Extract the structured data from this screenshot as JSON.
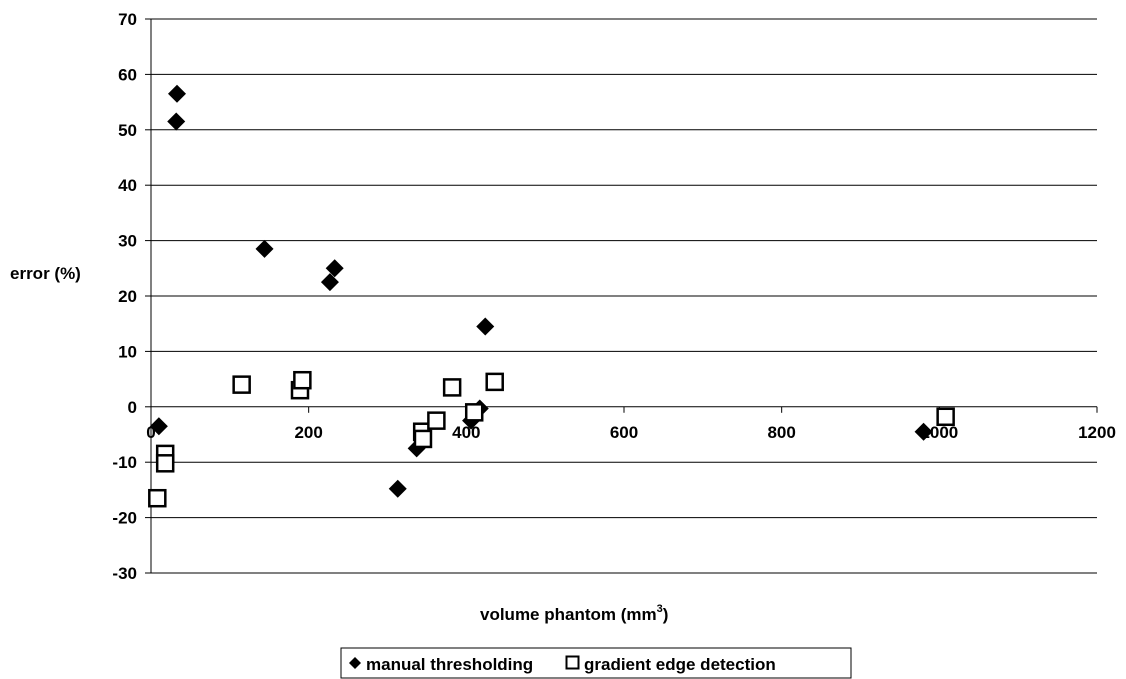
{
  "chart_data": {
    "type": "scatter",
    "title": "",
    "xlabel": "volume phantom (mm",
    "xlabel_superscript": "3",
    "xlabel_suffix": ")",
    "ylabel": "error (%)",
    "xlim": [
      0,
      1200
    ],
    "ylim": [
      -30,
      70
    ],
    "x_ticks": [
      "0",
      "200",
      "400",
      "600",
      "800",
      "1000",
      "1200"
    ],
    "y_ticks": [
      "70",
      "60",
      "50",
      "40",
      "30",
      "20",
      "10",
      "0",
      "-10",
      "-20",
      "-30"
    ],
    "grid": "horizontal",
    "legend_position": "bottom",
    "series": [
      {
        "name": "manual thresholding",
        "marker": "diamond-filled",
        "color": "#000000",
        "points": [
          [
            10,
            -3.5
          ],
          [
            33,
            56.5
          ],
          [
            32,
            51.5
          ],
          [
            144,
            28.5
          ],
          [
            233,
            25
          ],
          [
            227,
            22.5
          ],
          [
            313,
            -14.8
          ],
          [
            337,
            -7.5
          ],
          [
            406,
            -2.5
          ],
          [
            417,
            -0.3
          ],
          [
            424,
            14.5
          ],
          [
            980,
            -4.5
          ]
        ]
      },
      {
        "name": "gradient edge detection",
        "marker": "square-open",
        "color": "#000000",
        "points": [
          [
            8,
            -16.5
          ],
          [
            18,
            -8.5
          ],
          [
            18,
            -10.2
          ],
          [
            115,
            4
          ],
          [
            189,
            3
          ],
          [
            192,
            4.8
          ],
          [
            344,
            -4.5
          ],
          [
            345,
            -5.8
          ],
          [
            362,
            -2.5
          ],
          [
            382,
            3.5
          ],
          [
            410,
            -1
          ],
          [
            436,
            4.5
          ],
          [
            1008,
            -1.8
          ]
        ]
      }
    ]
  }
}
